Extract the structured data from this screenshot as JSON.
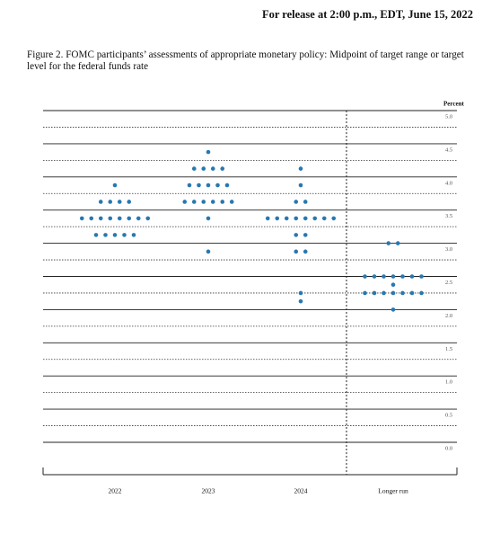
{
  "header": "For release at 2:00 p.m., EDT, June 15, 2022",
  "chart_data": {
    "type": "dotplot",
    "title": "Figure 2.  FOMC participants’ assessments of appropriate monetary policy:  Midpoint of target range or target level for the federal funds rate",
    "ylabel": "Percent",
    "categories": [
      "2022",
      "2023",
      "2024",
      "Longer run"
    ],
    "values": [
      [
        3.875,
        3.625,
        3.625,
        3.625,
        3.625,
        3.375,
        3.375,
        3.375,
        3.375,
        3.375,
        3.375,
        3.375,
        3.375,
        3.125,
        3.125,
        3.125,
        3.125,
        3.125
      ],
      [
        4.375,
        4.125,
        4.125,
        4.125,
        4.125,
        3.875,
        3.875,
        3.875,
        3.875,
        3.875,
        3.625,
        3.625,
        3.625,
        3.625,
        3.625,
        3.625,
        3.375,
        2.875
      ],
      [
        4.125,
        3.875,
        3.625,
        3.625,
        3.375,
        3.375,
        3.375,
        3.375,
        3.375,
        3.375,
        3.375,
        3.375,
        3.125,
        3.125,
        2.875,
        2.875,
        2.25,
        2.125
      ],
      [
        3.0,
        3.0,
        2.5,
        2.5,
        2.5,
        2.5,
        2.5,
        2.5,
        2.5,
        2.375,
        2.25,
        2.25,
        2.25,
        2.25,
        2.25,
        2.25,
        2.25,
        2.0
      ]
    ],
    "color": "#2878b0",
    "ylim": [
      0,
      5
    ],
    "yticks": [
      {
        "value": 0,
        "label": "0.0"
      },
      0.5,
      {
        "value": 1,
        "label": "1.0"
      },
      1.5,
      {
        "value": 2,
        "label": "2.0"
      },
      2.5,
      {
        "value": 3,
        "label": "3.0"
      },
      3.5,
      {
        "value": 4,
        "label": "4.0"
      },
      4.5,
      {
        "value": 5,
        "label": "5.0"
      }
    ],
    "minor_yticks": [
      0.25,
      0.75,
      1.25,
      1.75,
      2.25,
      2.75,
      3.25,
      3.75,
      4.25,
      4.75
    ],
    "grid": true
  }
}
